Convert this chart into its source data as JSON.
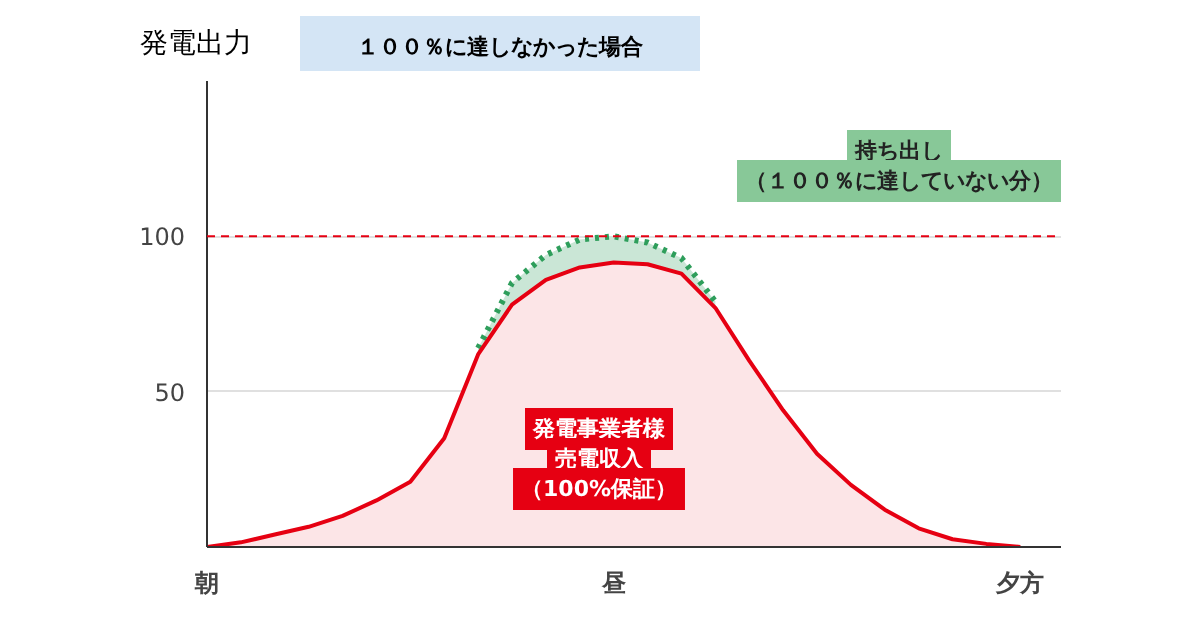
{
  "chart_data": {
    "type": "area",
    "ylabel": "発電出力",
    "categories": [
      "朝",
      null,
      null,
      null,
      null,
      null,
      null,
      null,
      null,
      null,
      null,
      null,
      "昼",
      null,
      null,
      null,
      null,
      null,
      null,
      null,
      null,
      null,
      null,
      null,
      "夕方"
    ],
    "ylim": [
      0,
      150
    ],
    "yticks": [
      50,
      100
    ],
    "grid": "y",
    "marker": "none",
    "series": [
      {
        "color": "#2e9e5b",
        "line_style": "dotted",
        "values": [
          null,
          null,
          null,
          null,
          null,
          null,
          null,
          null,
          64,
          85,
          94,
          99,
          100,
          98,
          93,
          79,
          null,
          null,
          null,
          null,
          null,
          null,
          null,
          null,
          null
        ]
      },
      {
        "color": "#e60012",
        "line_style": "solid",
        "values": [
          0,
          1.5,
          4,
          6.5,
          10,
          15,
          21,
          35,
          62,
          78,
          86,
          90,
          91.6,
          91,
          88,
          77,
          60,
          44,
          30,
          20,
          12,
          6,
          2.5,
          1,
          0
        ]
      }
    ],
    "ref_lines": [
      {
        "axis": "y",
        "value": 100,
        "color": "#e60012",
        "line_style": "dashed"
      }
    ],
    "annotations": [
      "１００％に達しなかった場合",
      "発電事業者様",
      "売電収入",
      "（100%保証）",
      "持ち出し",
      "（１００％に達していない分）"
    ]
  }
}
